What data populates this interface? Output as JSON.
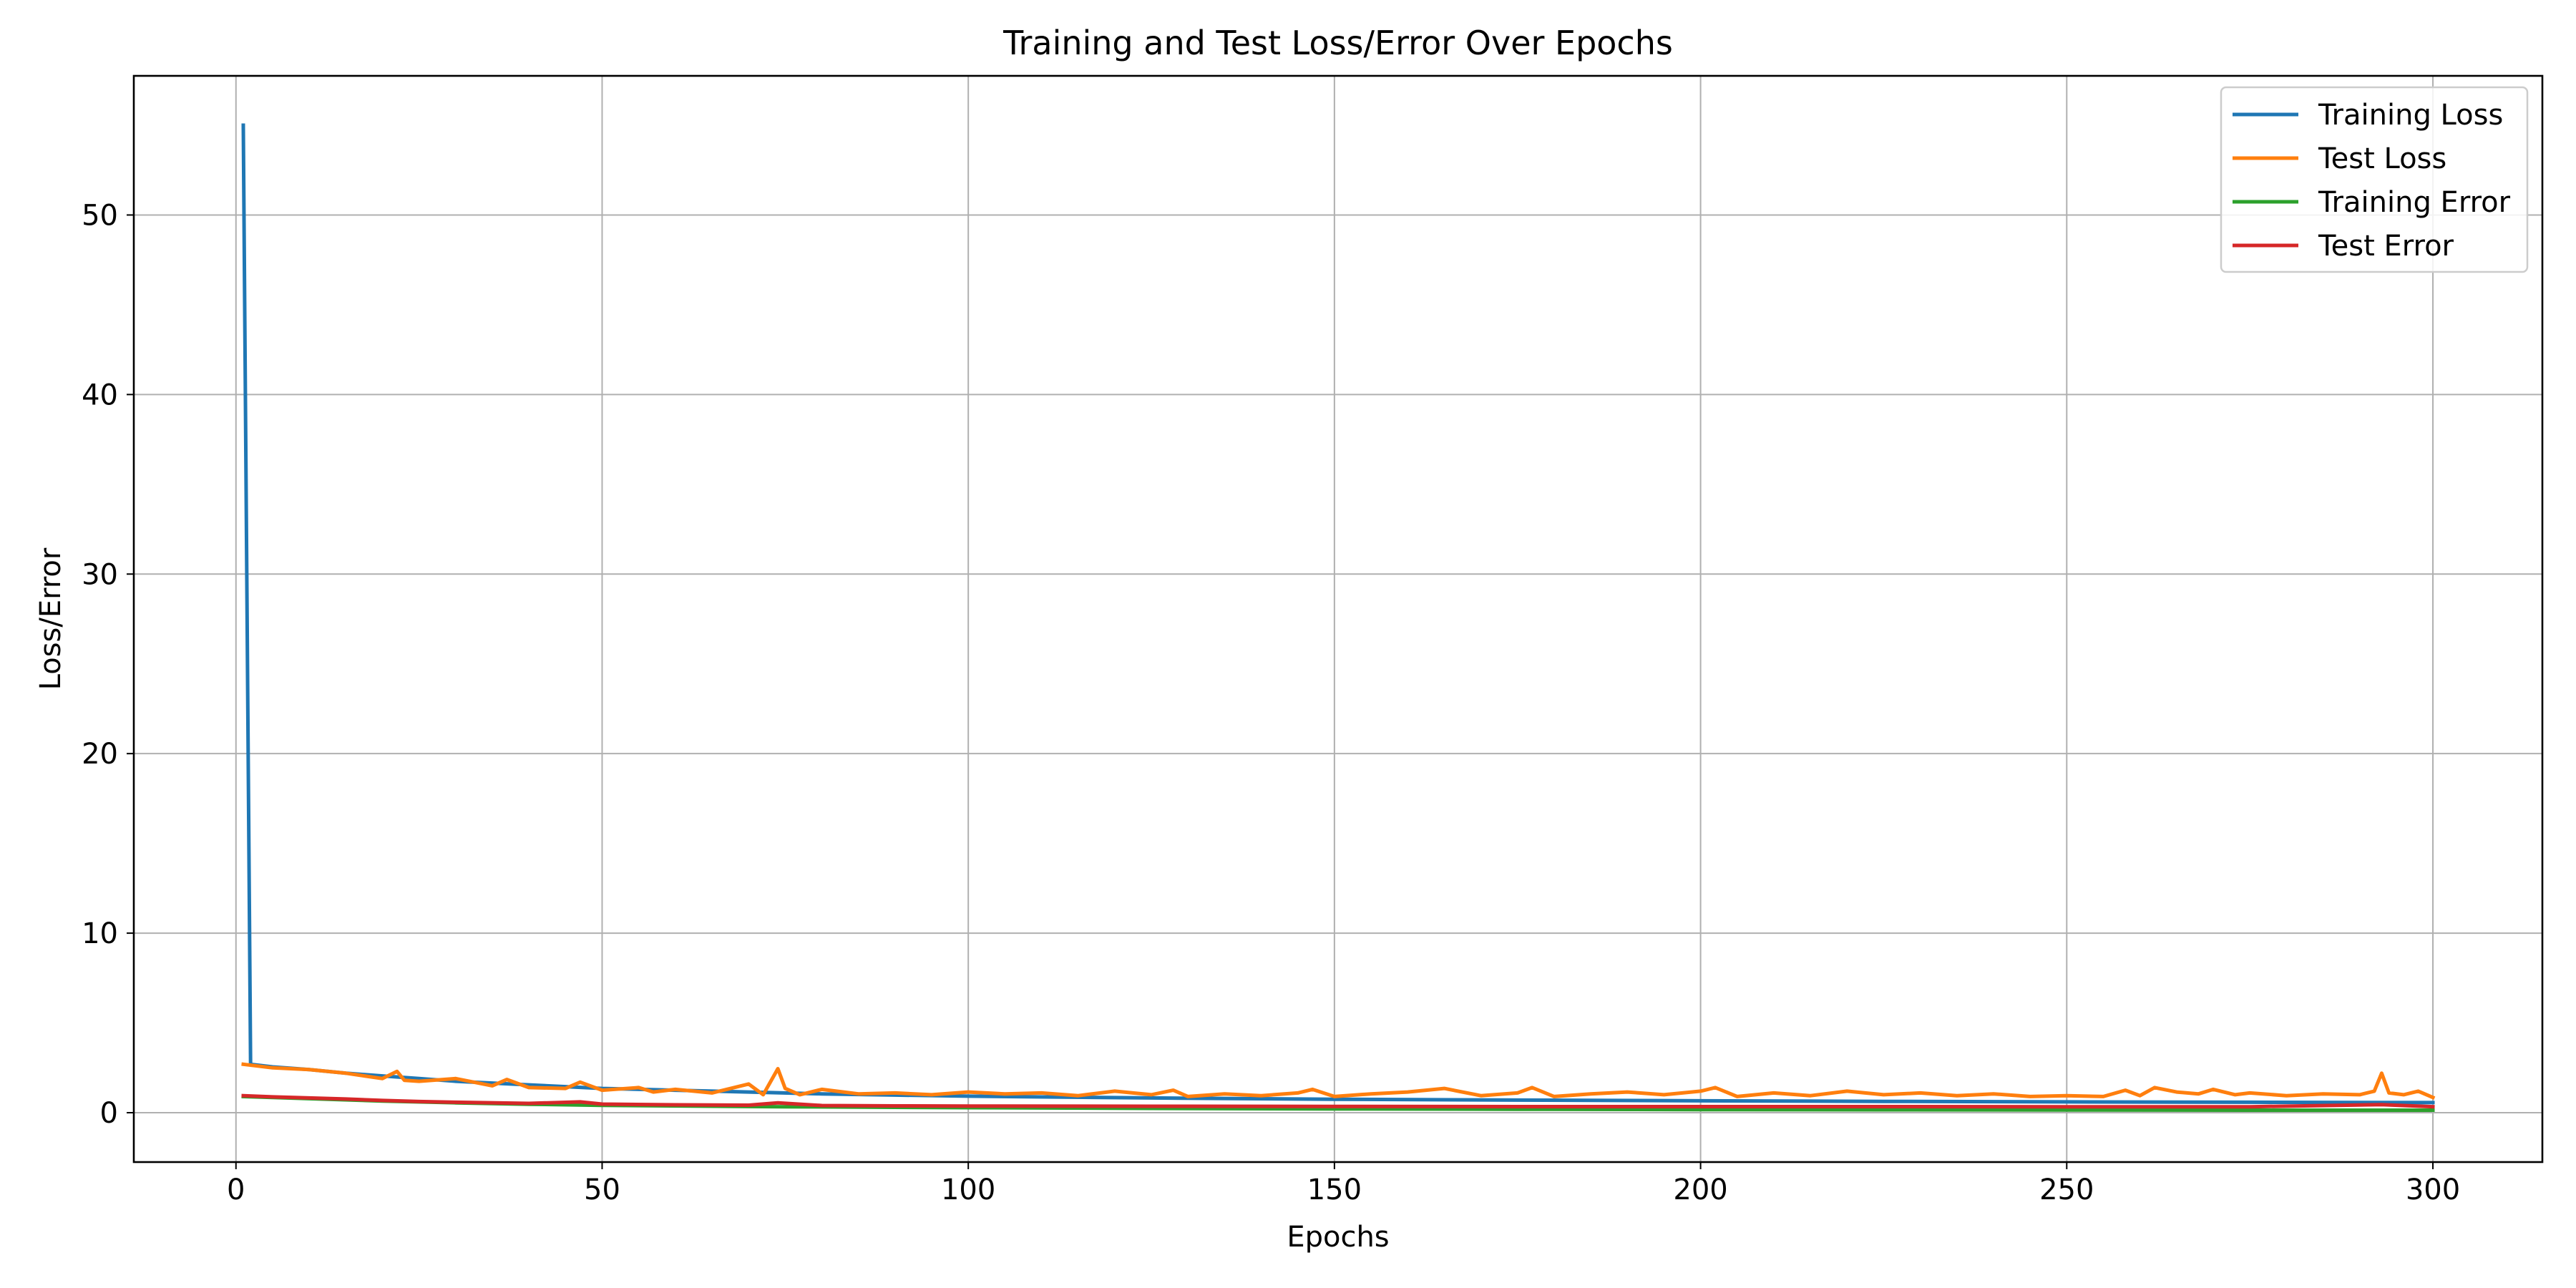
{
  "chart_data": {
    "type": "line",
    "title": "Training and Test Loss/Error Over Epochs",
    "xlabel": "Epochs",
    "ylabel": "Loss/Error",
    "xlim": [
      -13.95,
      314.95
    ],
    "ylim": [
      -2.75,
      57.75
    ],
    "xticks": [
      0,
      50,
      100,
      150,
      200,
      250,
      300
    ],
    "yticks": [
      0,
      10,
      20,
      30,
      40,
      50
    ],
    "grid": true,
    "legend_position": "top-right",
    "series": [
      {
        "name": "Training Loss",
        "color": "#1f77b4",
        "points": [
          [
            1,
            55.0
          ],
          [
            2,
            2.7
          ],
          [
            5,
            2.55
          ],
          [
            10,
            2.4
          ],
          [
            15,
            2.2
          ],
          [
            20,
            2.05
          ],
          [
            25,
            1.9
          ],
          [
            30,
            1.75
          ],
          [
            35,
            1.65
          ],
          [
            40,
            1.55
          ],
          [
            45,
            1.45
          ],
          [
            50,
            1.35
          ],
          [
            60,
            1.25
          ],
          [
            70,
            1.15
          ],
          [
            80,
            1.05
          ],
          [
            90,
            0.98
          ],
          [
            100,
            0.92
          ],
          [
            125,
            0.82
          ],
          [
            150,
            0.75
          ],
          [
            175,
            0.7
          ],
          [
            200,
            0.66
          ],
          [
            225,
            0.63
          ],
          [
            250,
            0.6
          ],
          [
            275,
            0.58
          ],
          [
            300,
            0.56
          ]
        ]
      },
      {
        "name": "Test Loss",
        "color": "#ff7f0e",
        "points": [
          [
            1,
            2.7
          ],
          [
            5,
            2.5
          ],
          [
            10,
            2.4
          ],
          [
            15,
            2.2
          ],
          [
            20,
            1.9
          ],
          [
            22,
            2.3
          ],
          [
            23,
            1.8
          ],
          [
            25,
            1.75
          ],
          [
            30,
            1.9
          ],
          [
            35,
            1.5
          ],
          [
            37,
            1.85
          ],
          [
            40,
            1.4
          ],
          [
            45,
            1.35
          ],
          [
            47,
            1.7
          ],
          [
            50,
            1.25
          ],
          [
            55,
            1.4
          ],
          [
            57,
            1.15
          ],
          [
            60,
            1.3
          ],
          [
            65,
            1.1
          ],
          [
            70,
            1.6
          ],
          [
            72,
            1.0
          ],
          [
            74,
            2.45
          ],
          [
            75,
            1.35
          ],
          [
            77,
            1.0
          ],
          [
            80,
            1.3
          ],
          [
            85,
            1.05
          ],
          [
            90,
            1.1
          ],
          [
            95,
            1.0
          ],
          [
            100,
            1.15
          ],
          [
            105,
            1.05
          ],
          [
            110,
            1.1
          ],
          [
            115,
            0.95
          ],
          [
            120,
            1.2
          ],
          [
            125,
            1.0
          ],
          [
            128,
            1.25
          ],
          [
            130,
            0.9
          ],
          [
            135,
            1.05
          ],
          [
            140,
            0.95
          ],
          [
            145,
            1.1
          ],
          [
            147,
            1.3
          ],
          [
            150,
            0.9
          ],
          [
            155,
            1.05
          ],
          [
            160,
            1.15
          ],
          [
            165,
            1.35
          ],
          [
            170,
            0.95
          ],
          [
            175,
            1.1
          ],
          [
            177,
            1.4
          ],
          [
            180,
            0.9
          ],
          [
            185,
            1.05
          ],
          [
            190,
            1.15
          ],
          [
            195,
            1.0
          ],
          [
            200,
            1.2
          ],
          [
            202,
            1.4
          ],
          [
            205,
            0.9
          ],
          [
            210,
            1.1
          ],
          [
            215,
            0.95
          ],
          [
            220,
            1.2
          ],
          [
            225,
            1.0
          ],
          [
            230,
            1.1
          ],
          [
            235,
            0.95
          ],
          [
            240,
            1.05
          ],
          [
            245,
            0.9
          ],
          [
            250,
            0.95
          ],
          [
            255,
            0.9
          ],
          [
            258,
            1.25
          ],
          [
            260,
            0.95
          ],
          [
            262,
            1.4
          ],
          [
            265,
            1.15
          ],
          [
            268,
            1.05
          ],
          [
            270,
            1.3
          ],
          [
            273,
            1.0
          ],
          [
            275,
            1.1
          ],
          [
            280,
            0.95
          ],
          [
            285,
            1.05
          ],
          [
            290,
            1.0
          ],
          [
            292,
            1.2
          ],
          [
            293,
            2.2
          ],
          [
            294,
            1.1
          ],
          [
            296,
            1.0
          ],
          [
            298,
            1.2
          ],
          [
            300,
            0.85
          ]
        ]
      },
      {
        "name": "Training Error",
        "color": "#2ca02c",
        "points": [
          [
            1,
            0.9
          ],
          [
            5,
            0.85
          ],
          [
            10,
            0.78
          ],
          [
            20,
            0.65
          ],
          [
            30,
            0.55
          ],
          [
            40,
            0.47
          ],
          [
            50,
            0.41
          ],
          [
            75,
            0.33
          ],
          [
            100,
            0.28
          ],
          [
            125,
            0.24
          ],
          [
            150,
            0.21
          ],
          [
            175,
            0.19
          ],
          [
            200,
            0.17
          ],
          [
            225,
            0.16
          ],
          [
            250,
            0.15
          ],
          [
            275,
            0.14
          ],
          [
            300,
            0.14
          ]
        ]
      },
      {
        "name": "Test Error",
        "color": "#d62728",
        "points": [
          [
            1,
            0.95
          ],
          [
            5,
            0.88
          ],
          [
            10,
            0.82
          ],
          [
            15,
            0.76
          ],
          [
            20,
            0.68
          ],
          [
            25,
            0.62
          ],
          [
            30,
            0.58
          ],
          [
            40,
            0.52
          ],
          [
            47,
            0.6
          ],
          [
            50,
            0.48
          ],
          [
            60,
            0.44
          ],
          [
            70,
            0.42
          ],
          [
            74,
            0.55
          ],
          [
            80,
            0.4
          ],
          [
            90,
            0.38
          ],
          [
            100,
            0.37
          ],
          [
            125,
            0.36
          ],
          [
            150,
            0.35
          ],
          [
            175,
            0.34
          ],
          [
            200,
            0.34
          ],
          [
            225,
            0.34
          ],
          [
            250,
            0.33
          ],
          [
            275,
            0.33
          ],
          [
            293,
            0.45
          ],
          [
            300,
            0.33
          ]
        ]
      }
    ]
  }
}
